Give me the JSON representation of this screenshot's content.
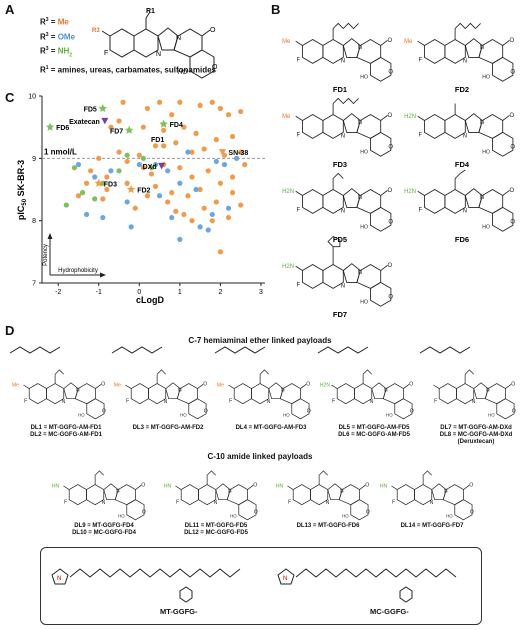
{
  "panels": {
    "a": "A",
    "b": "B",
    "c": "C",
    "d": "D"
  },
  "panel_a": {
    "r3_lines": [
      {
        "prefix": "R",
        "sup": "3",
        "eq": " = ",
        "value": "Me",
        "color": "#e8742a"
      },
      {
        "prefix": "R",
        "sup": "3",
        "eq": " = ",
        "value": "OMe",
        "color": "#4f90d0"
      },
      {
        "prefix": "R",
        "sup": "3",
        "eq": " = ",
        "value": "NH",
        "sub": "2",
        "color": "#5fae3f"
      }
    ],
    "r1_prefix": "R",
    "r1_sup": "1",
    "r1_text": " = amines, ureas, carbamates, sulfonamides",
    "struct_r1": "R1",
    "struct_r3": "R3"
  },
  "panel_b": {
    "compounds": [
      "FD1",
      "FD2",
      "FD3",
      "FD4",
      "FD5",
      "FD6",
      "FD7"
    ],
    "substituents": {
      "FD1": "Me",
      "FD2": "Me",
      "FD3": "Me",
      "FD4": "H2N",
      "FD5": "H2N",
      "FD6": "H2N",
      "FD7": "H2N"
    }
  },
  "chart_data": {
    "type": "scatter",
    "xlabel": "cLogD",
    "ylabel_main": "pIC",
    "ylabel_sub": "50",
    "ylabel_rest": " SK-BR-3",
    "xlim": [
      -2.4,
      3.1
    ],
    "ylim": [
      7,
      10
    ],
    "xticks": [
      "-2",
      "-1",
      "0",
      "1",
      "2",
      "3"
    ],
    "yticks": [
      "7",
      "8",
      "9",
      "10"
    ],
    "threshold_y": 9,
    "threshold_label": "1 nmol/L",
    "arrow_y_label": "Potency",
    "arrow_x_label": "Hydrophobicity",
    "colors": {
      "Me": "#f29a4a",
      "OMe": "#6ba6dc",
      "NH2": "#7dbf5e",
      "ref": "#7c3f9c"
    },
    "series": [
      {
        "group": "Me",
        "points": [
          [
            -0.7,
            9.5
          ],
          [
            -0.4,
            9.9
          ],
          [
            0.2,
            9.8
          ],
          [
            0.5,
            9.9
          ],
          [
            0.8,
            9.7
          ],
          [
            1.0,
            9.9
          ],
          [
            1.5,
            9.85
          ],
          [
            1.8,
            9.9
          ],
          [
            2.0,
            9.8
          ],
          [
            2.2,
            9.7
          ],
          [
            2.5,
            9.75
          ],
          [
            -0.5,
            9.6
          ],
          [
            0.1,
            9.5
          ],
          [
            0.6,
            9.45
          ],
          [
            1.1,
            9.5
          ],
          [
            1.4,
            9.4
          ],
          [
            1.9,
            9.3
          ],
          [
            2.3,
            9.35
          ],
          [
            2.5,
            9.1
          ],
          [
            -1.0,
            9.0
          ],
          [
            -0.5,
            9.1
          ],
          [
            0.0,
            9.05
          ],
          [
            0.4,
            9.2
          ],
          [
            0.9,
            9.25
          ],
          [
            1.3,
            9.1
          ],
          [
            1.6,
            9.15
          ],
          [
            2.1,
            9.05
          ],
          [
            2.4,
            9.0
          ],
          [
            -1.2,
            8.8
          ],
          [
            -0.8,
            8.7
          ],
          [
            -0.3,
            8.6
          ],
          [
            0.3,
            8.75
          ],
          [
            0.6,
            8.9
          ],
          [
            1.0,
            8.85
          ],
          [
            1.3,
            8.7
          ],
          [
            1.7,
            8.8
          ],
          [
            2.0,
            8.6
          ],
          [
            2.3,
            8.7
          ],
          [
            -1.5,
            8.4
          ],
          [
            -0.9,
            8.35
          ],
          [
            0.2,
            8.4
          ],
          [
            0.7,
            8.3
          ],
          [
            1.2,
            8.4
          ],
          [
            1.5,
            8.5
          ],
          [
            1.9,
            8.3
          ],
          [
            2.5,
            8.25
          ],
          [
            -0.1,
            8.2
          ],
          [
            0.9,
            8.15
          ],
          [
            1.3,
            8.0
          ],
          [
            2.2,
            8.05
          ],
          [
            -0.8,
            8.5
          ],
          [
            0.4,
            8.55
          ],
          [
            1.6,
            8.2
          ],
          [
            -0.3,
            8.95
          ],
          [
            0.8,
            8.45
          ],
          [
            1.8,
            8.0
          ],
          [
            2.6,
            8.9
          ],
          [
            2.0,
            7.5
          ],
          [
            -1.3,
            8.6
          ],
          [
            0.1,
            8.85
          ],
          [
            1.1,
            8.1
          ],
          [
            2.3,
            8.45
          ]
        ]
      },
      {
        "group": "OMe",
        "points": [
          [
            -1.5,
            8.9
          ],
          [
            -0.7,
            8.8
          ],
          [
            -0.3,
            8.3
          ],
          [
            -0.9,
            8.05
          ],
          [
            0.0,
            8.9
          ],
          [
            0.4,
            8.9
          ],
          [
            0.7,
            8.8
          ],
          [
            1.0,
            8.6
          ],
          [
            1.4,
            8.5
          ],
          [
            1.8,
            8.1
          ],
          [
            2.1,
            8.9
          ],
          [
            2.4,
            9.0
          ],
          [
            1.9,
            8.95
          ],
          [
            1.2,
            9.1
          ],
          [
            0.5,
            8.4
          ],
          [
            1.5,
            7.9
          ],
          [
            1.7,
            7.85
          ],
          [
            0.8,
            8.05
          ],
          [
            -0.2,
            7.9
          ],
          [
            -1.3,
            8.1
          ],
          [
            2.2,
            8.2
          ],
          [
            1.0,
            7.7
          ],
          [
            -1.1,
            8.7
          ]
        ]
      },
      {
        "group": "NH2",
        "points": [
          [
            -1.6,
            8.85
          ],
          [
            -1.4,
            8.45
          ],
          [
            -1.8,
            8.25
          ],
          [
            -1.1,
            8.35
          ],
          [
            -0.9,
            8.6
          ],
          [
            -0.5,
            8.8
          ],
          [
            -0.3,
            9.05
          ],
          [
            0.1,
            9.0
          ],
          [
            0.3,
            8.85
          ]
        ]
      }
    ],
    "labeled_points": [
      {
        "label": "FD1",
        "x": 0.6,
        "y": 9.2,
        "group": "Me",
        "marker": "dot"
      },
      {
        "label": "FD2",
        "x": -0.2,
        "y": 8.5,
        "group": "Me",
        "marker": "star"
      },
      {
        "label": "FD3",
        "x": -1.0,
        "y": 8.6,
        "group": "Me",
        "marker": "star"
      },
      {
        "label": "FD4",
        "x": 0.6,
        "y": 9.55,
        "group": "NH2",
        "marker": "star"
      },
      {
        "label": "FD5",
        "x": -0.9,
        "y": 9.8,
        "group": "NH2",
        "marker": "star"
      },
      {
        "label": "FD6",
        "x": -2.2,
        "y": 9.5,
        "group": "NH2",
        "marker": "star"
      },
      {
        "label": "FD7",
        "x": -0.25,
        "y": 9.45,
        "group": "NH2",
        "marker": "star"
      },
      {
        "label": "Exatecan",
        "x": -0.85,
        "y": 9.6,
        "group": "ref",
        "marker": "tri"
      },
      {
        "label": "DXd",
        "x": 0.55,
        "y": 8.88,
        "group": "ref",
        "marker": "tri"
      },
      {
        "label": "SN-38",
        "x": 2.05,
        "y": 9.1,
        "group": "Me",
        "marker": "tri"
      }
    ]
  },
  "panel_d": {
    "section1": "C-7 hemiaminal ether linked payloads",
    "section2": "C-10 amide linked payloads",
    "row1_captions": [
      [
        "DL1 = MT-GGFG-AM-FD1",
        "DL2 = MC-GGFG-AM-FD1"
      ],
      [
        "DL3 = MT-GGFG-AM-FD2"
      ],
      [
        "DL4 = MT-GGFG-AM-FD3"
      ],
      [
        "DL5 = MT-GGFG-AM-FD5",
        "DL6 = MC-GGFG-AM-FD5"
      ],
      [
        "DL7 = MT-GGFG-AM-DXd",
        "DL8 = MC-GGFG-AM-DXd",
        "(Deruxtecan)"
      ]
    ],
    "row2_captions": [
      [
        "DL9 = MT-GGFG-FD4",
        "DL10 = MC-GGFG-FD4"
      ],
      [
        "DL11 = MT-GGFG-FD5",
        "DL12 = MC-GGFG-FD5"
      ],
      [
        "DL13 = MT-GGFG-FD6"
      ],
      [
        "DL14 = MT-GGFG-FD7"
      ]
    ],
    "linker1": "MT-GGFG-",
    "linker2": "MC-GGFG-"
  }
}
